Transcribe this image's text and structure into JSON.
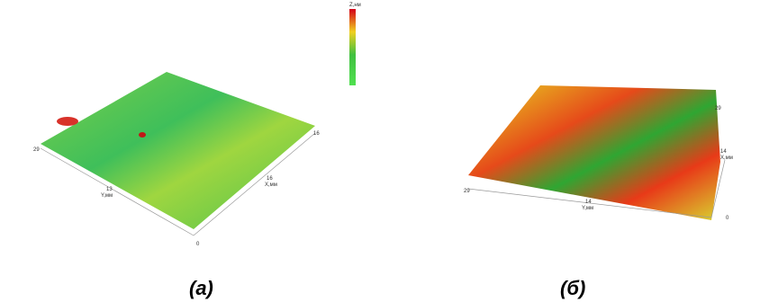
{
  "panels": [
    {
      "caption": "(а)",
      "labels": {
        "y_axis": "Y,мм",
        "x_axis": "X,мм",
        "y_end": "29",
        "y_mid": "13",
        "origin": "0",
        "x_mid": "16",
        "x_end": "16",
        "z_axis": "Z,нм"
      }
    },
    {
      "caption": "(б)",
      "labels": {
        "y_axis": "Y,мм",
        "x_axis": "X,мм",
        "y_end": "29",
        "y_mid": "14",
        "origin": "0",
        "x_mid": "14",
        "x_end": "29"
      }
    }
  ]
}
